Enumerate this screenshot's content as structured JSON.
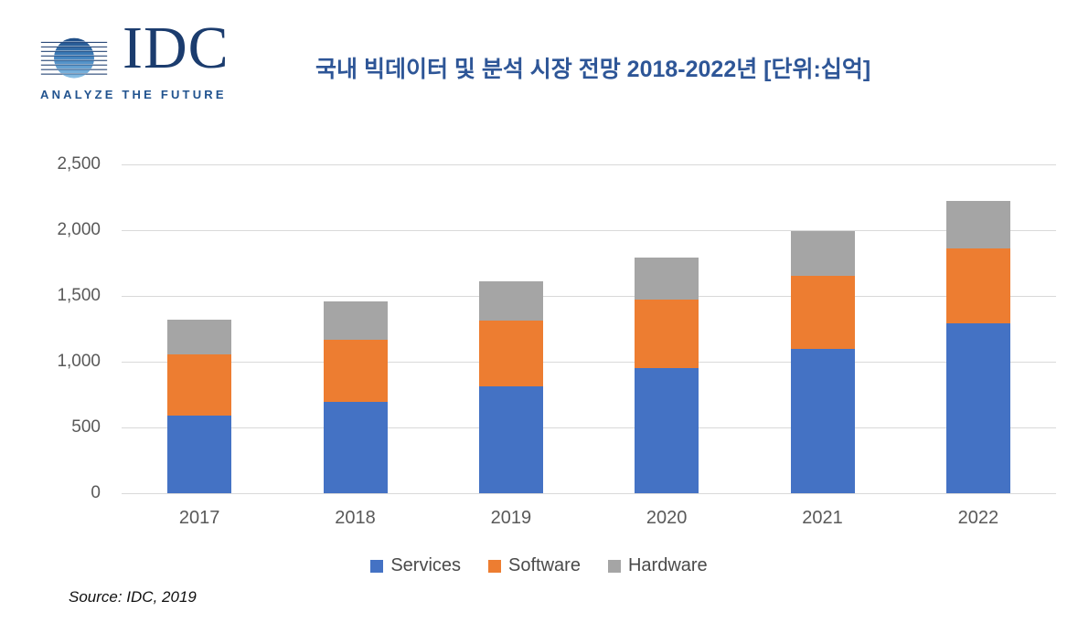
{
  "header": {
    "logo": {
      "brand": "IDC",
      "tagline": "ANALYZE THE FUTURE"
    },
    "title": "국내 빅데이터 및 분석 시장 전망 2018-2022년 [단위:십억]"
  },
  "source_note": "Source: IDC, 2019",
  "colors": {
    "services": "#4472C4",
    "software": "#ED7D31",
    "hardware": "#A5A5A5",
    "title_text": "#2E5697",
    "logo_navy": "#1B3C6E",
    "axis_text": "#595959",
    "gridline": "#D9D9D9"
  },
  "chart_data": {
    "type": "bar",
    "stacked": true,
    "title": "국내 빅데이터 및 분석 시장 전망 2018-2022년 [단위:십억]",
    "categories": [
      "2017",
      "2018",
      "2019",
      "2020",
      "2021",
      "2022"
    ],
    "series": [
      {
        "name": "Services",
        "color": "#4472C4",
        "values": [
          590,
          695,
          815,
          950,
          1100,
          1290
        ]
      },
      {
        "name": "Software",
        "color": "#ED7D31",
        "values": [
          465,
          475,
          495,
          520,
          550,
          570
        ]
      },
      {
        "name": "Hardware",
        "color": "#A5A5A5",
        "values": [
          265,
          290,
          300,
          320,
          340,
          360
        ]
      }
    ],
    "totals": [
      1320,
      1460,
      1610,
      1790,
      1990,
      2220
    ],
    "xlabel": "",
    "ylabel": "",
    "ylim": [
      0,
      2500
    ],
    "yticks": [
      0,
      500,
      1000,
      1500,
      2000,
      2500
    ],
    "ytick_labels": [
      "0",
      "500",
      "1,000",
      "1,500",
      "2,000",
      "2,500"
    ],
    "grid": true,
    "legend_position": "bottom"
  }
}
